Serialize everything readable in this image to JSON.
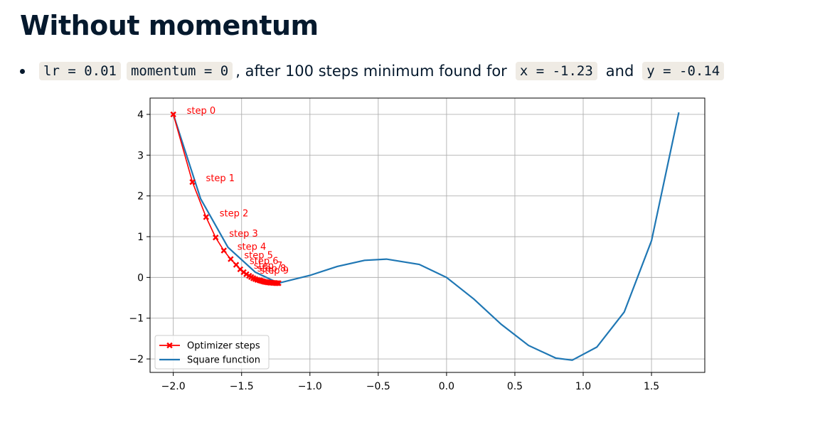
{
  "heading": "Without momentum",
  "bullet": {
    "code1": "lr = 0.01",
    "code2": "momentum = 0",
    "text1": ", after 100 steps minimum found for",
    "code3": "x = -1.23",
    "text2": "and",
    "code4": "y = -0.14"
  },
  "chart_data": {
    "type": "line",
    "title": "",
    "xlabel": "",
    "ylabel": "",
    "xlim": [
      -2.17,
      1.89
    ],
    "ylim": [
      -2.33,
      4.4
    ],
    "xticks": [
      "−2.0",
      "−1.5",
      "−1.0",
      "−0.5",
      "0.0",
      "0.5",
      "1.0",
      "1.5"
    ],
    "yticks": [
      "−2",
      "−1",
      "0",
      "1",
      "2",
      "3",
      "4"
    ],
    "grid": true,
    "legend_position": "lower-left",
    "series": [
      {
        "name": "Optimizer steps",
        "color": "#ff0000",
        "marker": "X",
        "x": [
          -2.0,
          -1.86,
          -1.76,
          -1.69,
          -1.63,
          -1.58,
          -1.54,
          -1.51,
          -1.485,
          -1.465,
          -1.445,
          -1.43,
          -1.415,
          -1.4,
          -1.385,
          -1.37,
          -1.36,
          -1.35,
          -1.34,
          -1.33,
          -1.32,
          -1.31,
          -1.3,
          -1.29,
          -1.28,
          -1.27,
          -1.26,
          -1.25,
          -1.24,
          -1.23
        ],
        "y": [
          4.0,
          2.34,
          1.48,
          0.98,
          0.66,
          0.45,
          0.31,
          0.2,
          0.13,
          0.08,
          0.04,
          0.01,
          -0.02,
          -0.04,
          -0.06,
          -0.07,
          -0.08,
          -0.09,
          -0.1,
          -0.11,
          -0.115,
          -0.12,
          -0.125,
          -0.13,
          -0.13,
          -0.135,
          -0.135,
          -0.14,
          -0.14,
          -0.14
        ]
      },
      {
        "name": "Square function",
        "color": "#1f77b4",
        "x": [
          -2.0,
          -1.8,
          -1.6,
          -1.4,
          -1.23,
          -1.0,
          -0.8,
          -0.6,
          -0.44,
          -0.2,
          0.0,
          0.2,
          0.4,
          0.6,
          0.8,
          0.92,
          1.1,
          1.3,
          1.5,
          1.7
        ],
        "y": [
          4.0,
          1.93,
          0.74,
          0.13,
          -0.14,
          0.05,
          0.27,
          0.42,
          0.45,
          0.32,
          0.0,
          -0.53,
          -1.15,
          -1.67,
          -1.98,
          -2.03,
          -1.71,
          -0.85,
          0.9,
          4.05
        ]
      }
    ],
    "annotations": [
      {
        "text": "step 0",
        "x": -2.0,
        "y": 4.0,
        "color": "#ff0000"
      },
      {
        "text": "step 1",
        "x": -1.86,
        "y": 2.34,
        "color": "#ff0000"
      },
      {
        "text": "step 2",
        "x": -1.76,
        "y": 1.48,
        "color": "#ff0000"
      },
      {
        "text": "step 3",
        "x": -1.69,
        "y": 0.98,
        "color": "#ff0000"
      },
      {
        "text": "step 4",
        "x": -1.63,
        "y": 0.66,
        "color": "#ff0000"
      },
      {
        "text": "step 5",
        "x": -1.58,
        "y": 0.45,
        "color": "#ff0000"
      },
      {
        "text": "step 6",
        "x": -1.54,
        "y": 0.31,
        "color": "#ff0000"
      },
      {
        "text": "step 7",
        "x": -1.51,
        "y": 0.2,
        "color": "#ff0000"
      },
      {
        "text": "step 8",
        "x": -1.485,
        "y": 0.13,
        "color": "#ff0000"
      },
      {
        "text": "step 9",
        "x": -1.465,
        "y": 0.08,
        "color": "#ff0000"
      }
    ]
  }
}
